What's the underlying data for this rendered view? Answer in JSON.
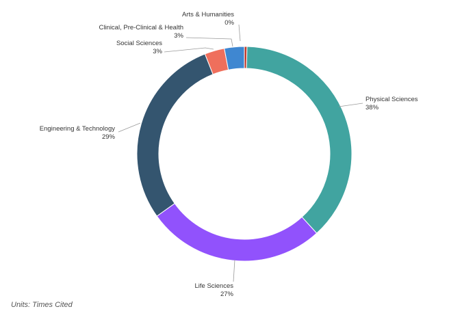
{
  "chart_data": {
    "type": "pie",
    "donut": true,
    "categories": [
      "Arts & Humanities",
      "Physical Sciences",
      "Life Sciences",
      "Engineering & Technology",
      "Social Sciences",
      "Clinical, Pre-Clinical & Health"
    ],
    "values": [
      0.4,
      38,
      27,
      29,
      3,
      3
    ],
    "value_labels": [
      "0%",
      "38%",
      "27%",
      "29%",
      "3%",
      "3%"
    ],
    "colors": [
      "#c0392b",
      "#41a4a0",
      "#9152fc",
      "#34556f",
      "#ef6f5c",
      "#3f87d1"
    ],
    "units_note": "Units: Times Cited"
  }
}
